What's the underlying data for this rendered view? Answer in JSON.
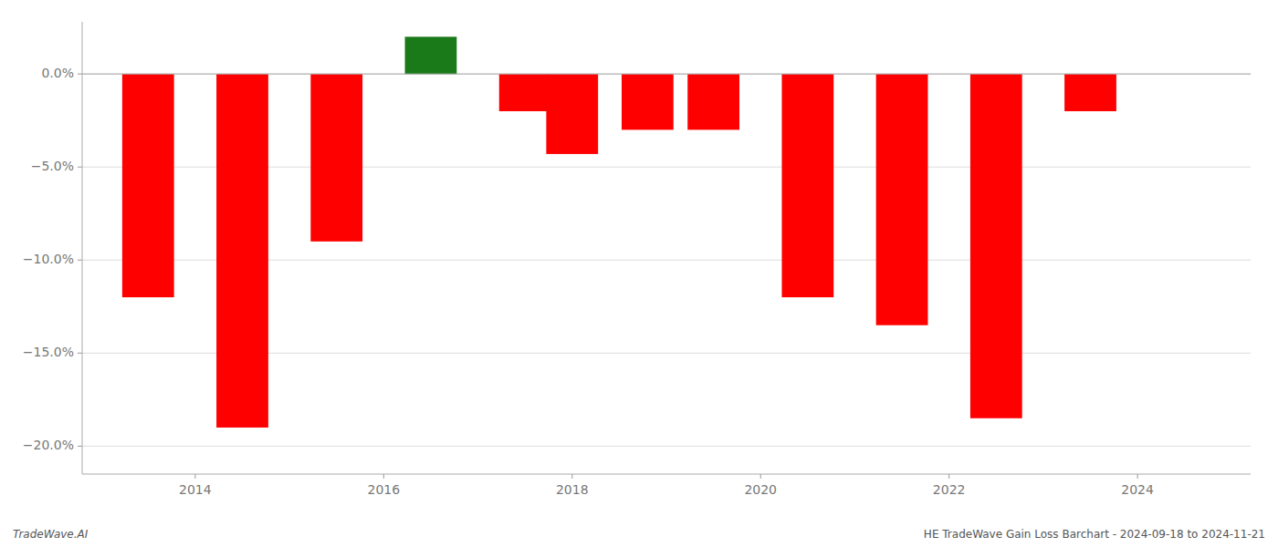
{
  "chart_data": {
    "type": "bar",
    "x": [
      2013.5,
      2014.5,
      2015.5,
      2016.5,
      2017.5,
      2018.0,
      2018.8,
      2019.5,
      2020.5,
      2021.5,
      2022.5,
      2023.5
    ],
    "values": [
      -12.0,
      -19.0,
      -9.0,
      2.0,
      -2.0,
      -4.3,
      -3.0,
      -3.0,
      -12.0,
      -13.5,
      -18.5,
      -2.0
    ],
    "colors": [
      "#ff0000",
      "#ff0000",
      "#ff0000",
      "#1a7a1a",
      "#ff0000",
      "#ff0000",
      "#ff0000",
      "#ff0000",
      "#ff0000",
      "#ff0000",
      "#ff0000",
      "#ff0000"
    ],
    "xlim": [
      2012.8,
      2025.2
    ],
    "xticks": [
      2014,
      2016,
      2018,
      2020,
      2022,
      2024
    ],
    "ylim": [
      -21.5,
      2.8
    ],
    "yticks": [
      {
        "value": 0.0,
        "label": "0.0%"
      },
      {
        "value": -5.0,
        "label": "−5.0%"
      },
      {
        "value": -10.0,
        "label": "−10.0%"
      },
      {
        "value": -15.0,
        "label": "−15.0%"
      },
      {
        "value": -20.0,
        "label": "−20.0%"
      }
    ],
    "grid": true,
    "annotations": [
      "TradeWave.AI",
      "HE TradeWave Gain Loss Barchart - 2024-09-18 to 2024-11-21"
    ]
  }
}
